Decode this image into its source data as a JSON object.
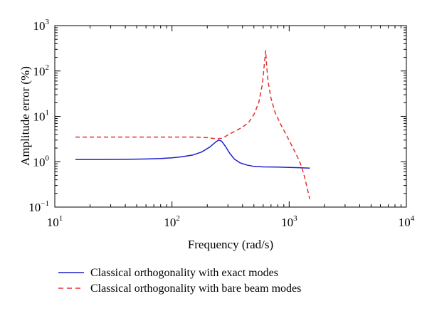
{
  "chart_data": {
    "type": "line",
    "title": "",
    "xlabel": "Frequency (rad/s)",
    "ylabel": "Amplitude error (%)",
    "xscale": "log",
    "yscale": "log",
    "xlim": [
      10,
      10000
    ],
    "ylim": [
      0.1,
      1000
    ],
    "x_ticks": [
      {
        "value": 10,
        "base": "10",
        "exp": "1"
      },
      {
        "value": 100,
        "base": "10",
        "exp": "2"
      },
      {
        "value": 1000,
        "base": "10",
        "exp": "3"
      },
      {
        "value": 10000,
        "base": "10",
        "exp": "4"
      }
    ],
    "y_ticks": [
      {
        "value": 0.1,
        "base": "10",
        "exp": "−1"
      },
      {
        "value": 1,
        "base": "10",
        "exp": "0"
      },
      {
        "value": 10,
        "base": "10",
        "exp": "1"
      },
      {
        "value": 100,
        "base": "10",
        "exp": "2"
      },
      {
        "value": 1000,
        "base": "10",
        "exp": "3"
      }
    ],
    "grid": false,
    "legend_position": "bottom",
    "series": [
      {
        "name": "Classical orthogonality with exact modes",
        "color": "#1f1fcc",
        "line_style": "solid",
        "points": [
          [
            15,
            1.12
          ],
          [
            25,
            1.12
          ],
          [
            40,
            1.13
          ],
          [
            60,
            1.15
          ],
          [
            80,
            1.18
          ],
          [
            100,
            1.22
          ],
          [
            120,
            1.28
          ],
          [
            150,
            1.4
          ],
          [
            180,
            1.65
          ],
          [
            210,
            2.1
          ],
          [
            235,
            2.7
          ],
          [
            250,
            3.0
          ],
          [
            265,
            2.85
          ],
          [
            285,
            2.2
          ],
          [
            310,
            1.55
          ],
          [
            340,
            1.15
          ],
          [
            380,
            0.95
          ],
          [
            430,
            0.85
          ],
          [
            500,
            0.79
          ],
          [
            600,
            0.77
          ],
          [
            800,
            0.76
          ],
          [
            1000,
            0.75
          ],
          [
            1200,
            0.74
          ],
          [
            1500,
            0.72
          ]
        ]
      },
      {
        "name": "Classical orthogonality with bare beam modes",
        "color": "#e63030",
        "line_style": "dashed",
        "points": [
          [
            15,
            3.5
          ],
          [
            30,
            3.5
          ],
          [
            60,
            3.5
          ],
          [
            100,
            3.5
          ],
          [
            150,
            3.5
          ],
          [
            200,
            3.4
          ],
          [
            240,
            3.2
          ],
          [
            270,
            3.3
          ],
          [
            300,
            3.9
          ],
          [
            350,
            4.8
          ],
          [
            400,
            5.8
          ],
          [
            450,
            7.3
          ],
          [
            500,
            11
          ],
          [
            550,
            20
          ],
          [
            590,
            50
          ],
          [
            615,
            150
          ],
          [
            630,
            280
          ],
          [
            640,
            150
          ],
          [
            660,
            60
          ],
          [
            700,
            25
          ],
          [
            760,
            12
          ],
          [
            850,
            6.5
          ],
          [
            950,
            3.8
          ],
          [
            1050,
            2.3
          ],
          [
            1150,
            1.45
          ],
          [
            1250,
            0.9
          ],
          [
            1330,
            0.55
          ],
          [
            1400,
            0.32
          ],
          [
            1460,
            0.2
          ],
          [
            1500,
            0.15
          ]
        ]
      }
    ]
  }
}
